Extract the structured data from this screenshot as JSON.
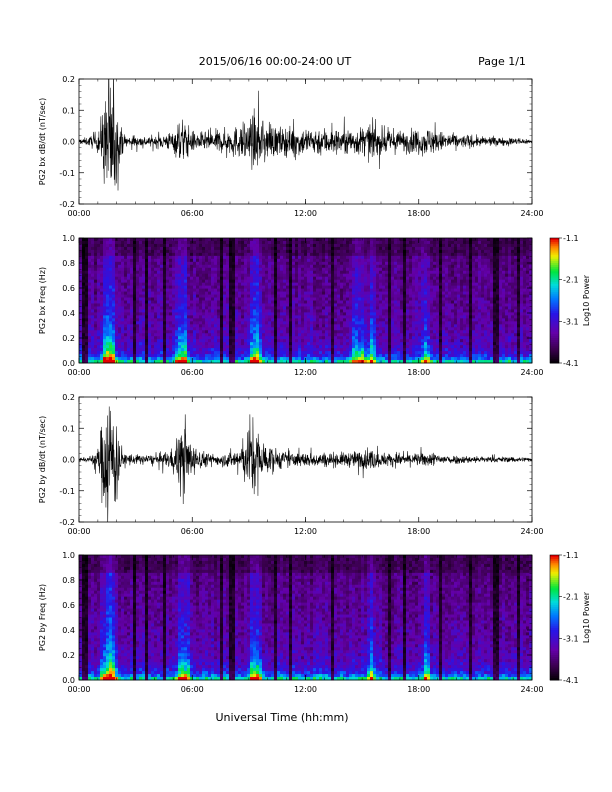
{
  "header": {
    "title": "2015/06/16  00:00-24:00 UT",
    "page": "Page 1/1"
  },
  "footer": {
    "xlabel": "Universal Time (hh:mm)"
  },
  "chart_data": [
    {
      "type": "line",
      "panel_id": "bx_waveform",
      "ylabel": "PG2 bx dB/dt (nT/sec)",
      "xlim": [
        0,
        24
      ],
      "ylim": [
        -0.2,
        0.2
      ],
      "yticks": [
        "0.2",
        "0.1",
        "0.0",
        "-0.1",
        "-0.2"
      ],
      "ytick_values": [
        0.2,
        0.1,
        0.0,
        -0.1,
        -0.2
      ],
      "xticks": [
        "00:00",
        "06:00",
        "12:00",
        "18:00",
        "24:00"
      ],
      "xtick_values": [
        0,
        6,
        12,
        18,
        24
      ],
      "series": [
        {
          "color": "#000000",
          "envelope": {
            "hours": [
              0,
              0.5,
              1.0,
              1.3,
              1.5,
              1.7,
              1.9,
              2.1,
              2.4,
              3.0,
              4.0,
              5.0,
              5.4,
              5.7,
              6.0,
              6.5,
              7.0,
              8.0,
              9.0,
              9.3,
              9.6,
              10.0,
              11.0,
              12.0,
              13.0,
              14.0,
              15.0,
              15.5,
              16.0,
              17.0,
              18.0,
              18.5,
              19.0,
              20.0,
              21.0,
              22.0,
              23.0,
              24.0
            ],
            "amplitude": [
              0.008,
              0.012,
              0.03,
              0.1,
              0.21,
              0.21,
              0.15,
              0.06,
              0.02,
              0.015,
              0.015,
              0.03,
              0.07,
              0.05,
              0.03,
              0.025,
              0.03,
              0.035,
              0.06,
              0.08,
              0.06,
              0.045,
              0.04,
              0.04,
              0.04,
              0.035,
              0.04,
              0.05,
              0.035,
              0.03,
              0.035,
              0.04,
              0.03,
              0.02,
              0.015,
              0.012,
              0.01,
              0.008
            ]
          }
        }
      ]
    },
    {
      "type": "heatmap",
      "panel_id": "bx_spectrogram",
      "ylabel": "PG2 bx Freq (Hz)",
      "xlim": [
        0,
        24
      ],
      "ylim": [
        0,
        1.0
      ],
      "yticks": [
        "1.0",
        "0.8",
        "0.6",
        "0.4",
        "0.2",
        "0.0"
      ],
      "ytick_values": [
        1.0,
        0.8,
        0.6,
        0.4,
        0.2,
        0.0
      ],
      "xticks": [
        "00:00",
        "06:00",
        "12:00",
        "18:00",
        "24:00"
      ],
      "xtick_values": [
        0,
        6,
        12,
        18,
        24
      ],
      "colorbar": {
        "label": "Log10 Power",
        "range": [
          -4.1,
          -1.1
        ],
        "ticks": [
          "-1.1",
          "-2.1",
          "-3.1",
          "-4.1"
        ],
        "tick_values": [
          -1.1,
          -2.1,
          -3.1,
          -4.1
        ]
      },
      "activity_hours": [
        1.4,
        1.6,
        1.8,
        5.3,
        5.6,
        9.2,
        9.5,
        14.6,
        15.0,
        15.5,
        18.4
      ],
      "quiet_hours": [
        0.2,
        0.4,
        2.9,
        3.6,
        4.5,
        7.5,
        8.1,
        10.4,
        11.2,
        13.4,
        16.4,
        17.3,
        19.2,
        20.8,
        22.1,
        23.3
      ]
    },
    {
      "type": "line",
      "panel_id": "by_waveform",
      "ylabel": "PG2 by dB/dt (nT/sec)",
      "xlim": [
        0,
        24
      ],
      "ylim": [
        -0.2,
        0.2
      ],
      "yticks": [
        "0.2",
        "0.1",
        "0.0",
        "-0.1",
        "-0.2"
      ],
      "ytick_values": [
        0.2,
        0.1,
        0.0,
        -0.1,
        -0.2
      ],
      "xticks": [
        "00:00",
        "06:00",
        "12:00",
        "18:00",
        "24:00"
      ],
      "xtick_values": [
        0,
        6,
        12,
        18,
        24
      ],
      "series": [
        {
          "color": "#000000",
          "envelope": {
            "hours": [
              0,
              0.5,
              1.0,
              1.3,
              1.5,
              1.7,
              1.9,
              2.1,
              2.4,
              3.0,
              4.0,
              5.0,
              5.3,
              5.6,
              5.9,
              6.3,
              7.0,
              8.0,
              8.8,
              9.2,
              9.5,
              9.8,
              10.5,
              11.0,
              12.0,
              13.0,
              14.0,
              15.0,
              15.5,
              16.0,
              17.0,
              18.0,
              18.5,
              19.0,
              20.0,
              21.0,
              22.0,
              23.0,
              24.0
            ],
            "amplitude": [
              0.006,
              0.008,
              0.03,
              0.14,
              0.21,
              0.2,
              0.14,
              0.06,
              0.02,
              0.015,
              0.012,
              0.03,
              0.1,
              0.09,
              0.05,
              0.03,
              0.015,
              0.02,
              0.05,
              0.11,
              0.09,
              0.05,
              0.03,
              0.02,
              0.02,
              0.02,
              0.02,
              0.025,
              0.03,
              0.02,
              0.018,
              0.018,
              0.02,
              0.015,
              0.012,
              0.01,
              0.008,
              0.008,
              0.006
            ]
          }
        }
      ]
    },
    {
      "type": "heatmap",
      "panel_id": "by_spectrogram",
      "ylabel": "PG2 by Freq (Hz)",
      "xlim": [
        0,
        24
      ],
      "ylim": [
        0,
        1.0
      ],
      "yticks": [
        "1.0",
        "0.8",
        "0.6",
        "0.4",
        "0.2",
        "0.0"
      ],
      "ytick_values": [
        1.0,
        0.8,
        0.6,
        0.4,
        0.2,
        0.0
      ],
      "xticks": [
        "00:00",
        "06:00",
        "12:00",
        "18:00",
        "24:00"
      ],
      "xtick_values": [
        0,
        6,
        12,
        18,
        24
      ],
      "colorbar": {
        "label": "Log10 Power",
        "range": [
          -4.1,
          -1.1
        ],
        "ticks": [
          "-1.1",
          "-2.1",
          "-3.1",
          "-4.1"
        ],
        "tick_values": [
          -1.1,
          -2.1,
          -3.1,
          -4.1
        ]
      },
      "activity_hours": [
        1.3,
        1.6,
        1.8,
        5.4,
        5.7,
        9.2,
        9.5,
        15.5,
        18.4
      ],
      "quiet_hours": [
        0.2,
        0.4,
        2.9,
        3.6,
        4.5,
        7.5,
        8.1,
        10.4,
        11.2,
        13.4,
        16.4,
        17.3,
        19.2,
        20.8,
        22.1,
        23.3
      ]
    }
  ]
}
